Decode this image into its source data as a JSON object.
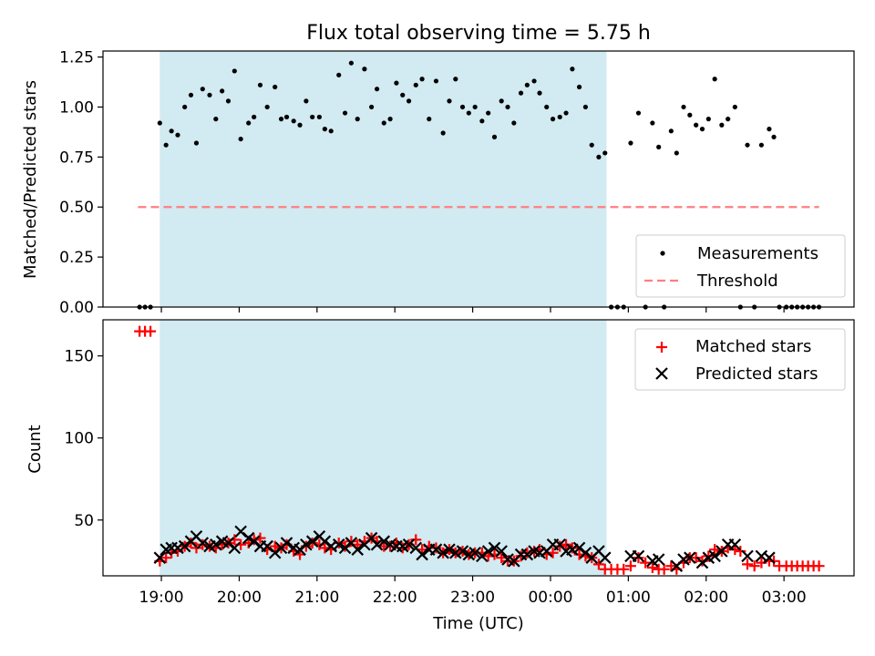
{
  "chart_data": [
    {
      "type": "scatter",
      "title": "Flux total observing time = 5.75 h",
      "xlabel": "",
      "ylabel": "Matched/Predicted stars",
      "x_unit": "hours since 00:00 UTC of first night (19:00 = 19)",
      "xlim": [
        18.25,
        27.9
      ],
      "ylim": [
        0,
        1.28
      ],
      "yticks": [
        0,
        0.25,
        0.5,
        0.75,
        1.0,
        1.25
      ],
      "ytick_labels": [
        "0.00",
        "0.25",
        "0.50",
        "0.75",
        "1.00",
        "1.25"
      ],
      "grid": false,
      "legend_position": "lower-right",
      "shaded_interval": [
        18.98,
        24.72
      ],
      "shade_color": "#add8e6",
      "threshold": {
        "name": "Threshold",
        "value": 0.5,
        "x_range": [
          18.7,
          27.45
        ],
        "color": "#ff7f7f"
      },
      "series": [
        {
          "name": "Measurements",
          "color": "#000000",
          "x": [
            18.72,
            18.79,
            18.86,
            18.98,
            19.06,
            19.13,
            19.21,
            19.3,
            19.38,
            19.45,
            19.53,
            19.62,
            19.7,
            19.78,
            19.86,
            19.94,
            20.02,
            20.12,
            20.19,
            20.27,
            20.36,
            20.46,
            20.54,
            20.61,
            20.7,
            20.78,
            20.86,
            20.94,
            21.03,
            21.1,
            21.18,
            21.28,
            21.36,
            21.44,
            21.52,
            21.61,
            21.7,
            21.77,
            21.86,
            21.94,
            22.02,
            22.1,
            22.18,
            22.27,
            22.35,
            22.44,
            22.53,
            22.62,
            22.7,
            22.78,
            22.87,
            22.95,
            23.03,
            23.12,
            23.2,
            23.28,
            23.37,
            23.45,
            23.53,
            23.62,
            23.7,
            23.79,
            23.86,
            23.95,
            24.03,
            24.12,
            24.2,
            24.28,
            24.37,
            24.45,
            24.53,
            24.62,
            24.7,
            24.78,
            24.86,
            24.94,
            25.03,
            25.13,
            25.22,
            25.31,
            25.39,
            25.46,
            25.55,
            25.62,
            25.71,
            25.79,
            25.87,
            25.95,
            26.03,
            26.11,
            26.2,
            26.28,
            26.37,
            26.44,
            26.53,
            26.62,
            26.71,
            26.81,
            26.87,
            26.94,
            27.03,
            27.1,
            27.17,
            27.24,
            27.31,
            27.38,
            27.45
          ],
          "y": [
            0,
            0,
            0,
            0.92,
            0.81,
            0.88,
            0.86,
            1.0,
            1.06,
            0.82,
            1.09,
            1.06,
            0.94,
            1.08,
            1.03,
            1.18,
            0.84,
            0.92,
            0.95,
            1.11,
            1.0,
            1.1,
            0.94,
            0.95,
            0.93,
            0.91,
            1.03,
            0.95,
            0.95,
            0.89,
            0.88,
            1.16,
            0.97,
            1.22,
            0.94,
            1.19,
            1.0,
            1.09,
            0.92,
            0.94,
            1.12,
            1.06,
            1.03,
            1.11,
            1.14,
            0.94,
            1.13,
            0.87,
            1.03,
            1.14,
            1.0,
            0.97,
            1.0,
            0.93,
            0.97,
            0.85,
            1.03,
            1.0,
            0.92,
            1.07,
            1.11,
            1.13,
            1.07,
            1.0,
            0.94,
            0.95,
            0.97,
            1.19,
            1.1,
            1.0,
            0.81,
            0.75,
            0.77,
            0,
            0,
            0,
            0.82,
            0.97,
            0,
            0.92,
            0.8,
            0,
            0.88,
            0.77,
            1.0,
            0.96,
            0.91,
            0.89,
            0.94,
            1.14,
            0.91,
            0.94,
            1.0,
            0,
            0.81,
            0,
            0.81,
            0.89,
            0.85,
            0,
            0,
            0,
            0,
            0,
            0,
            0,
            0
          ]
        }
      ]
    },
    {
      "type": "scatter",
      "title": "",
      "xlabel": "Time (UTC)",
      "ylabel": "Count",
      "x_unit": "hours since 00:00 UTC of first night",
      "xlim": [
        18.25,
        27.9
      ],
      "ylim": [
        16,
        172
      ],
      "yticks": [
        50,
        100,
        150
      ],
      "ytick_labels": [
        "50",
        "100",
        "150"
      ],
      "xticks": [
        19,
        20,
        21,
        22,
        23,
        24,
        25,
        26,
        27
      ],
      "xtick_labels": [
        "19:00",
        "20:00",
        "21:00",
        "22:00",
        "23:00",
        "00:00",
        "01:00",
        "02:00",
        "03:00"
      ],
      "grid": false,
      "legend_position": "top-right",
      "shaded_interval": [
        18.98,
        24.72
      ],
      "series": [
        {
          "name": "Matched stars",
          "color": "#ff0000",
          "marker": "plus",
          "x": [
            18.72,
            18.79,
            18.86,
            18.98,
            19.06,
            19.13,
            19.21,
            19.3,
            19.38,
            19.45,
            19.53,
            19.62,
            19.7,
            19.78,
            19.86,
            19.94,
            20.02,
            20.12,
            20.19,
            20.27,
            20.36,
            20.46,
            20.54,
            20.61,
            20.7,
            20.78,
            20.86,
            20.94,
            21.03,
            21.1,
            21.18,
            21.28,
            21.36,
            21.44,
            21.52,
            21.61,
            21.7,
            21.77,
            21.86,
            21.94,
            22.02,
            22.1,
            22.18,
            22.27,
            22.35,
            22.44,
            22.53,
            22.62,
            22.7,
            22.78,
            22.87,
            22.95,
            23.03,
            23.12,
            23.2,
            23.28,
            23.37,
            23.45,
            23.53,
            23.62,
            23.7,
            23.79,
            23.86,
            23.95,
            24.03,
            24.12,
            24.2,
            24.28,
            24.37,
            24.45,
            24.53,
            24.62,
            24.7,
            24.78,
            24.86,
            24.94,
            25.03,
            25.13,
            25.22,
            25.31,
            25.39,
            25.46,
            25.55,
            25.62,
            25.71,
            25.79,
            25.87,
            25.95,
            26.03,
            26.11,
            26.2,
            26.28,
            26.37,
            26.44,
            26.53,
            26.62,
            26.71,
            26.81,
            26.87,
            26.94,
            27.03,
            27.1,
            27.17,
            27.24,
            27.31,
            27.38,
            27.45
          ],
          "y": [
            165,
            165,
            165,
            25,
            27,
            30,
            31,
            34,
            36,
            33,
            35,
            34,
            33,
            35,
            36,
            38,
            35,
            36,
            38,
            39,
            32,
            34,
            33,
            35,
            31,
            29,
            34,
            36,
            35,
            33,
            32,
            36,
            34,
            37,
            35,
            37,
            39,
            37,
            34,
            34,
            36,
            33,
            35,
            38,
            32,
            34,
            33,
            30,
            32,
            30,
            31,
            29,
            30,
            30,
            28,
            29,
            27,
            25,
            25,
            28,
            30,
            31,
            32,
            29,
            30,
            34,
            35,
            33,
            29,
            28,
            27,
            23,
            20,
            20,
            20,
            20,
            22,
            27,
            24,
            21,
            20,
            20,
            22,
            20,
            24,
            27,
            27,
            25,
            28,
            32,
            31,
            33,
            32,
            31,
            23,
            22,
            24,
            25,
            25,
            22,
            22,
            22,
            22,
            22,
            22,
            22,
            22
          ]
        },
        {
          "name": "Predicted stars",
          "color": "#000000",
          "marker": "x",
          "x": [
            18.98,
            19.06,
            19.13,
            19.21,
            19.3,
            19.38,
            19.45,
            19.53,
            19.62,
            19.7,
            19.78,
            19.86,
            19.94,
            20.02,
            20.12,
            20.19,
            20.27,
            20.36,
            20.46,
            20.54,
            20.61,
            20.7,
            20.78,
            20.86,
            20.94,
            21.03,
            21.1,
            21.18,
            21.28,
            21.36,
            21.44,
            21.52,
            21.61,
            21.7,
            21.77,
            21.86,
            21.94,
            22.02,
            22.1,
            22.18,
            22.27,
            22.35,
            22.44,
            22.53,
            22.62,
            22.7,
            22.78,
            22.87,
            22.95,
            23.03,
            23.12,
            23.2,
            23.28,
            23.37,
            23.45,
            23.53,
            23.62,
            23.7,
            23.79,
            23.86,
            23.95,
            24.03,
            24.12,
            24.2,
            24.28,
            24.37,
            24.45,
            24.53,
            24.62,
            24.7,
            25.03,
            25.13,
            25.31,
            25.39,
            25.62,
            25.71,
            25.79,
            25.95,
            26.03,
            26.11,
            26.2,
            26.28,
            26.37,
            26.53,
            26.71,
            26.81
          ],
          "y": [
            27,
            32,
            33,
            33,
            34,
            37,
            40,
            36,
            34,
            35,
            37,
            36,
            33,
            43,
            39,
            37,
            34,
            34,
            30,
            33,
            36,
            33,
            32,
            35,
            37,
            40,
            37,
            34,
            35,
            33,
            36,
            32,
            35,
            39,
            35,
            37,
            35,
            34,
            34,
            35,
            33,
            29,
            32,
            32,
            30,
            32,
            30,
            31,
            29,
            30,
            28,
            31,
            33,
            31,
            26,
            25,
            29,
            29,
            31,
            30,
            31,
            35,
            35,
            31,
            32,
            33,
            30,
            27,
            31,
            27,
            28,
            28,
            25,
            26,
            22,
            26,
            27,
            24,
            27,
            28,
            31,
            35,
            35,
            28,
            28,
            27
          ]
        }
      ]
    }
  ]
}
